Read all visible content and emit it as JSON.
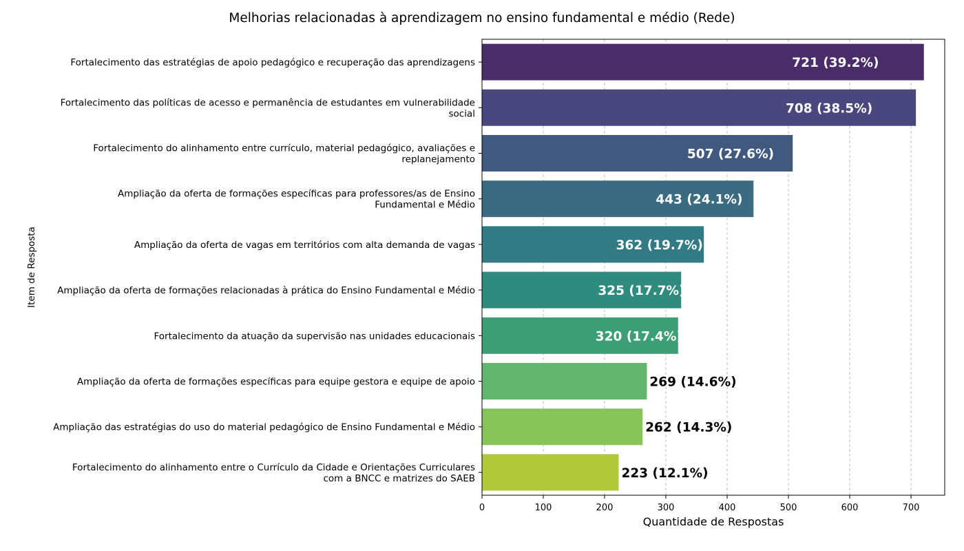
{
  "chart_data": {
    "type": "bar",
    "orientation": "horizontal",
    "title": "Melhorias relacionadas à aprendizagem no ensino fundamental e médio (Rede)",
    "xlabel": "Quantidade de Respostas",
    "ylabel": "Item de Resposta",
    "xlim": [
      0,
      755
    ],
    "xticks": [
      "0",
      "100",
      "200",
      "300",
      "400",
      "500",
      "600",
      "700"
    ],
    "grid": "x-dashed",
    "categories": [
      [
        "Fortalecimento das estratégias de apoio pedagógico e recuperação das aprendizagens"
      ],
      [
        "Fortalecimento das políticas de acesso e permanência de estudantes em vulnerabilidade",
        "social"
      ],
      [
        "Fortalecimento do alinhamento entre currículo, material pedagógico, avaliações e",
        "replanejamento"
      ],
      [
        "Ampliação da oferta de formações específicas para professores/as de Ensino",
        "Fundamental e Médio"
      ],
      [
        "Ampliação da oferta de vagas em territórios com alta demanda de vagas"
      ],
      [
        "Ampliação da oferta de formações relacionadas à prática do Ensino Fundamental e Médio"
      ],
      [
        "Fortalecimento da atuação da supervisão nas unidades educacionais"
      ],
      [
        "Ampliação da oferta de formações específicas para equipe gestora e equipe de apoio"
      ],
      [
        "Ampliação das estratégias do uso do material pedagógico de Ensino Fundamental e Médio"
      ],
      [
        "Fortalecimento do alinhamento entre o Currículo da Cidade e Orientações Curriculares",
        "com a BNCC e matrizes do SAEB"
      ]
    ],
    "values": [
      721,
      708,
      507,
      443,
      362,
      325,
      320,
      269,
      262,
      223
    ],
    "data_labels": [
      "721 (39.2%)",
      "708 (38.5%)",
      "507 (27.6%)",
      "443 (24.1%)",
      "362 (19.7%)",
      "325 (17.7%)",
      "320 (17.4%)",
      "269 (14.6%)",
      "262 (14.3%)",
      "223 (12.1%)"
    ],
    "label_inside": [
      true,
      true,
      true,
      true,
      true,
      true,
      true,
      false,
      false,
      false
    ],
    "colors": [
      "#4a2c69",
      "#49477e",
      "#42597f",
      "#3b6b80",
      "#327b84",
      "#2f8b7e",
      "#3c9f78",
      "#62b56e",
      "#88c35a",
      "#b1c83a"
    ]
  }
}
